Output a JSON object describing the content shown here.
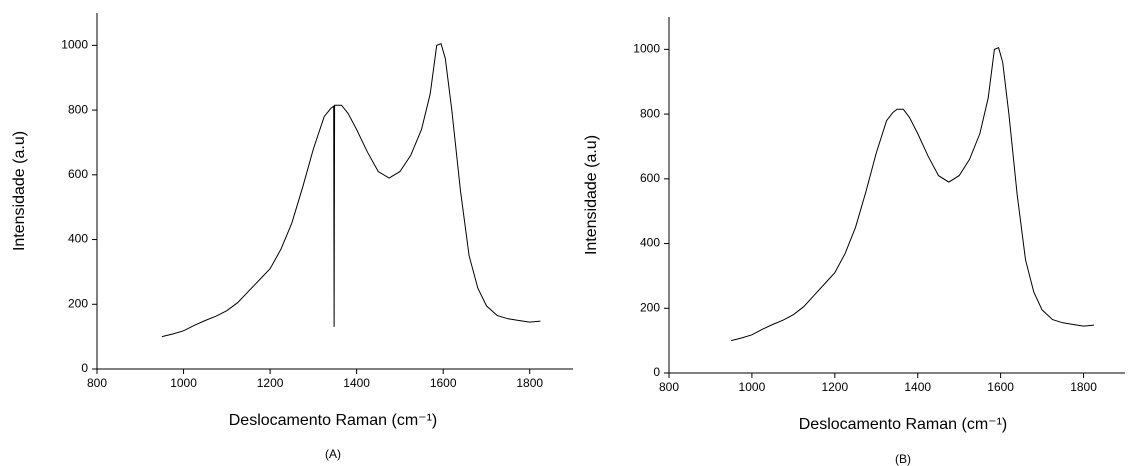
{
  "chart_data": [
    {
      "type": "line",
      "xlabel": "Deslocamento Raman (cm⁻¹)",
      "ylabel": "Intensidade (a.u)",
      "caption": "(A)",
      "color": "#000000",
      "xlim": [
        800,
        1900
      ],
      "ylim": [
        0,
        1100
      ],
      "xticks": [
        800,
        1000,
        1200,
        1400,
        1600,
        1800
      ],
      "yticks": [
        0,
        200,
        400,
        600,
        800,
        1000
      ],
      "x": [
        950,
        975,
        1000,
        1025,
        1050,
        1075,
        1100,
        1125,
        1150,
        1175,
        1200,
        1225,
        1250,
        1275,
        1300,
        1325,
        1340,
        1347,
        1348,
        1349,
        1365,
        1380,
        1400,
        1425,
        1450,
        1475,
        1500,
        1525,
        1550,
        1570,
        1585,
        1595,
        1605,
        1620,
        1640,
        1660,
        1680,
        1700,
        1725,
        1750,
        1775,
        1800,
        1825
      ],
      "values": [
        100,
        108,
        118,
        135,
        150,
        163,
        180,
        205,
        240,
        275,
        310,
        370,
        450,
        560,
        680,
        780,
        805,
        812,
        130,
        815,
        815,
        790,
        740,
        670,
        610,
        590,
        610,
        660,
        740,
        850,
        1000,
        1005,
        960,
        800,
        550,
        350,
        250,
        195,
        165,
        155,
        150,
        145,
        148
      ]
    },
    {
      "type": "line",
      "xlabel": "Deslocamento Raman (cm⁻¹)",
      "ylabel": "Intensidade (a.u)",
      "caption": "(B)",
      "color": "#000000",
      "xlim": [
        800,
        1900
      ],
      "ylim": [
        0,
        1100
      ],
      "xticks": [
        800,
        1000,
        1200,
        1400,
        1600,
        1800
      ],
      "yticks": [
        0,
        200,
        400,
        600,
        800,
        1000
      ],
      "x": [
        950,
        975,
        1000,
        1025,
        1050,
        1075,
        1100,
        1125,
        1150,
        1175,
        1200,
        1225,
        1250,
        1275,
        1300,
        1325,
        1340,
        1350,
        1365,
        1380,
        1400,
        1425,
        1450,
        1475,
        1500,
        1525,
        1550,
        1570,
        1585,
        1595,
        1605,
        1620,
        1640,
        1660,
        1680,
        1700,
        1725,
        1750,
        1775,
        1800,
        1825
      ],
      "values": [
        100,
        108,
        118,
        135,
        150,
        163,
        180,
        205,
        240,
        275,
        310,
        370,
        450,
        560,
        680,
        780,
        805,
        815,
        815,
        790,
        740,
        670,
        610,
        590,
        610,
        660,
        740,
        850,
        1000,
        1005,
        960,
        800,
        550,
        350,
        250,
        195,
        165,
        155,
        150,
        145,
        148
      ]
    }
  ]
}
